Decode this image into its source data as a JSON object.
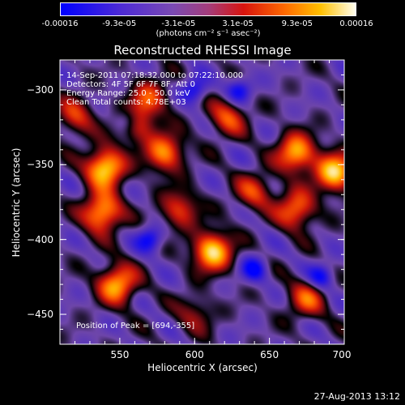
{
  "colorbar": {
    "ticks": [
      "-0.00016",
      "-9.3e-05",
      "-3.1e-05",
      "3.1e-05",
      "9.3e-05",
      "0.00016"
    ],
    "units": "(photons cm⁻² s⁻¹ asec⁻²)",
    "colors": [
      "#0000ff",
      "#7a4ab3",
      "#d8140e",
      "#ff6a00",
      "#ffc000",
      "#fffff0"
    ]
  },
  "chart_data": {
    "type": "heatmap",
    "title": "Reconstructed RHESSI Image",
    "xlabel": "Heliocentric X (arcsec)",
    "ylabel": "Heliocentric Y (arcsec)",
    "xlim": [
      510,
      700
    ],
    "ylim": [
      -470,
      -280
    ],
    "xticks": [
      550,
      600,
      650,
      700
    ],
    "yticks": [
      -300,
      -350,
      -400,
      -450
    ],
    "info_lines": [
      "14-Sep-2011 07:18:32.000 to 07:22:10.000",
      "Detectors: 4F 5F 6F 7F 8F, Att 0",
      "Energy Range: 25.0 - 50.0 keV",
      "Clean     Total counts: 4.78E+03"
    ],
    "peak_label": "Position of Peak = [694,-355]",
    "peak": [
      694,
      -355
    ],
    "sources": [
      {
        "x": 540,
        "y": -352,
        "v": 1.0
      },
      {
        "x": 538,
        "y": -382,
        "v": 0.9
      },
      {
        "x": 548,
        "y": -430,
        "v": 0.85
      },
      {
        "x": 560,
        "y": -322,
        "v": 0.6
      },
      {
        "x": 580,
        "y": -342,
        "v": 0.75
      },
      {
        "x": 612,
        "y": -408,
        "v": 0.98
      },
      {
        "x": 622,
        "y": -318,
        "v": 0.55
      },
      {
        "x": 640,
        "y": -368,
        "v": 0.5
      },
      {
        "x": 668,
        "y": -342,
        "v": 0.85
      },
      {
        "x": 668,
        "y": -380,
        "v": 0.7
      },
      {
        "x": 694,
        "y": -355,
        "v": 0.95
      },
      {
        "x": 675,
        "y": -440,
        "v": 0.55
      },
      {
        "x": 600,
        "y": -450,
        "v": 0.35
      },
      {
        "x": 520,
        "y": -318,
        "v": 0.5
      },
      {
        "x": 570,
        "y": -305,
        "v": 0.5
      },
      {
        "x": 590,
        "y": -380,
        "v": 0.55
      }
    ],
    "dips": [
      {
        "x": 555,
        "y": -320
      },
      {
        "x": 600,
        "y": -300
      },
      {
        "x": 570,
        "y": -400
      },
      {
        "x": 640,
        "y": -420
      },
      {
        "x": 685,
        "y": -425
      },
      {
        "x": 630,
        "y": -300
      }
    ]
  },
  "timestamp": "27-Aug-2013 13:12"
}
